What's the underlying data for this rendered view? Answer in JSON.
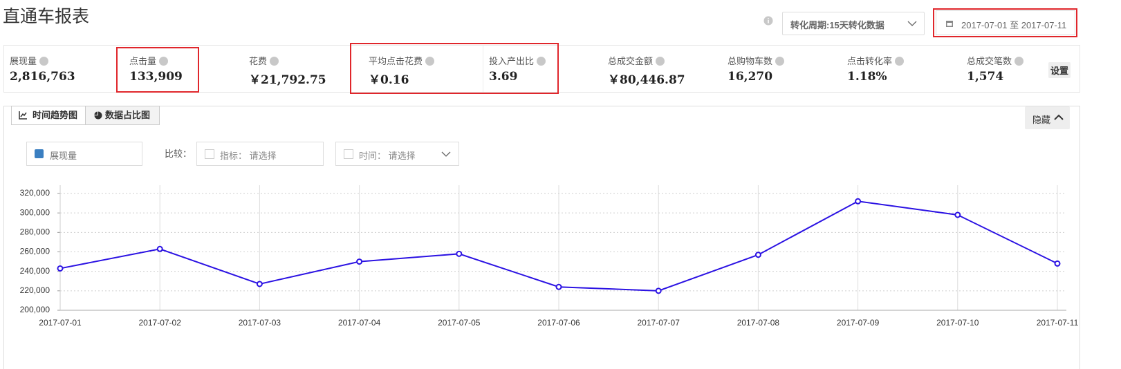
{
  "header": {
    "title": "直通车报表",
    "period": "转化周期:15天转化数据",
    "date_range": "2017-07-01 至 2017-07-11"
  },
  "metrics": [
    {
      "label": "展现量",
      "value": "2,816,763"
    },
    {
      "label": "点击量",
      "value": "133,909"
    },
    {
      "label": "花费",
      "value": "￥21,792.75"
    },
    {
      "label": "平均点击花费",
      "value": "￥0.16"
    },
    {
      "label": "投入产出比",
      "value": "3.69"
    },
    {
      "label": "总成交金额",
      "value": "￥80,446.87"
    },
    {
      "label": "总购物车数",
      "value": "16,270"
    },
    {
      "label": "点击转化率",
      "value": "1.18%"
    },
    {
      "label": "总成交笔数",
      "value": "1,574"
    }
  ],
  "settings_button": "设置",
  "tabs": [
    "时间趋势图",
    "数据占比图"
  ],
  "hide_button": "隐藏",
  "controls": {
    "compare": "比较：",
    "indicator": "指标： 请选择",
    "time": "时间： 请选择"
  },
  "chart_data": {
    "type": "line",
    "x": [
      "2017-07-01",
      "2017-07-02",
      "2017-07-03",
      "2017-07-04",
      "2017-07-05",
      "2017-07-06",
      "2017-07-07",
      "2017-07-08",
      "2017-07-09",
      "2017-07-10",
      "2017-07-11"
    ],
    "series": [
      {
        "name": "展现量",
        "color": "#2b12e3",
        "values": [
          243000,
          263000,
          227000,
          250000,
          258000,
          224000,
          220000,
          257000,
          312000,
          298000,
          248000
        ]
      }
    ],
    "ylim": [
      200000,
      320000
    ],
    "yticks": [
      {
        "value": 200000,
        "label": "200,000"
      },
      {
        "value": 220000,
        "label": "220,000"
      },
      {
        "value": 240000,
        "label": "240,000"
      },
      {
        "value": 260000,
        "label": "260,000"
      },
      {
        "value": 280000,
        "label": "280,000"
      },
      {
        "value": 300000,
        "label": "300,000"
      },
      {
        "value": 320000,
        "label": "320,000"
      }
    ],
    "grid": true
  }
}
